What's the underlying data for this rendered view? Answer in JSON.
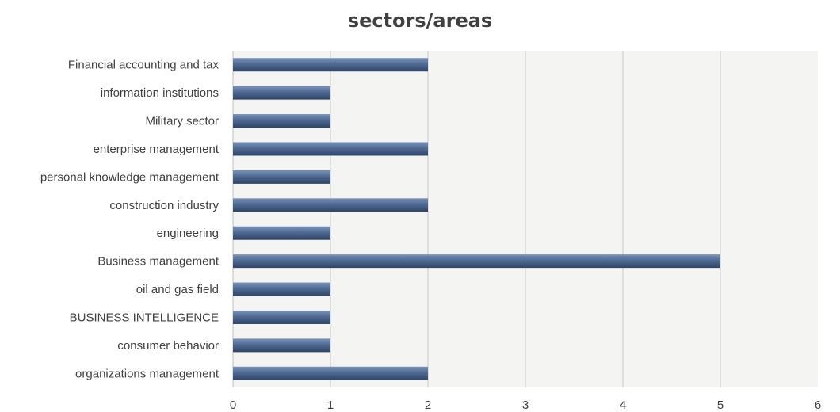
{
  "chart_data": {
    "type": "bar",
    "orientation": "horizontal",
    "title": "sectors/areas",
    "xlabel": "",
    "ylabel": "",
    "categories": [
      "Financial accounting and tax",
      "information institutions",
      "Military sector",
      "enterprise management",
      "personal  knowledge management",
      "construction industry",
      "engineering",
      "Business management",
      "oil and gas field",
      "BUSINESS INTELLIGENCE",
      "consumer behavior",
      "organizations management"
    ],
    "values": [
      2,
      1,
      1,
      2,
      1,
      2,
      1,
      5,
      1,
      1,
      1,
      2
    ],
    "xlim": [
      0,
      6
    ],
    "xticks": [
      "0",
      "1",
      "2",
      "3",
      "4",
      "5",
      "6"
    ],
    "grid": true,
    "legend": "none",
    "colors": {
      "bar": "#4f6a93",
      "bar_dark": "#2f4466",
      "bar_light": "#7b93b8",
      "plot_background": "#f4f4f2",
      "gridline": "#c8c8c8",
      "text": "#404040"
    }
  }
}
